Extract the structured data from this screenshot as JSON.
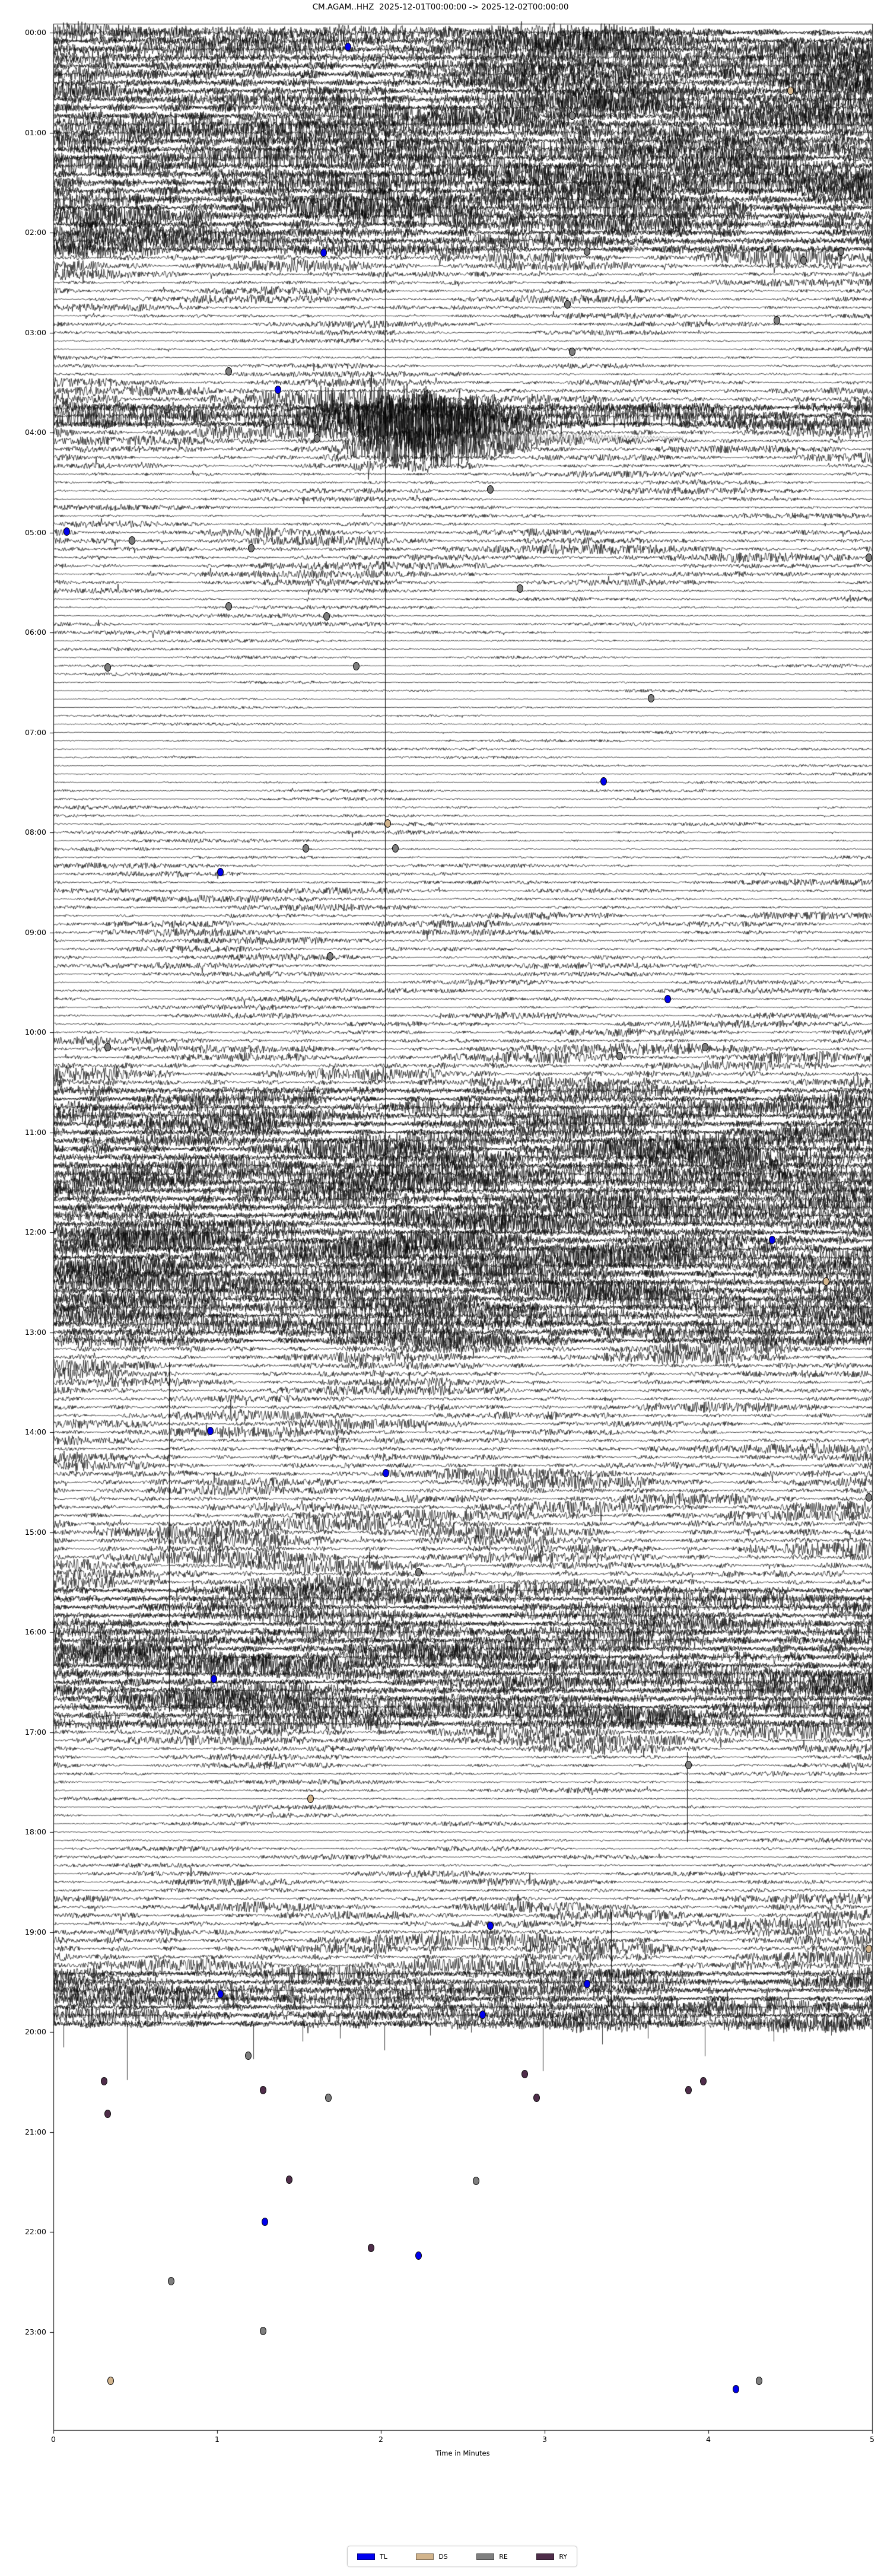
{
  "title": "CM.AGAM..HHZ  2025-12-01T00:00:00 -> 2025-12-02T00:00:00",
  "chart_data": {
    "type": "line",
    "subtype": "helicorder-day-plot",
    "station": "CM.AGAM..HHZ",
    "time_range": {
      "start": "2025-12-01T00:00:00",
      "end": "2025-12-02T00:00:00"
    },
    "xlabel": "Time in Minutes",
    "x_range": [
      0,
      5
    ],
    "x_ticks": [
      "0",
      "1",
      "2",
      "3",
      "4",
      "5"
    ],
    "y_tick_labels": [
      "00:00",
      "01:00",
      "02:00",
      "03:00",
      "04:00",
      "05:00",
      "06:00",
      "07:00",
      "08:00",
      "09:00",
      "10:00",
      "11:00",
      "12:00",
      "13:00",
      "14:00",
      "15:00",
      "16:00",
      "17:00",
      "18:00",
      "19:00",
      "20:00",
      "21:00",
      "22:00",
      "23:00"
    ],
    "minutes_per_line": 5,
    "lines_per_hour": 12,
    "waveform_end_label": "20:00",
    "grid": false,
    "legend_position": "bottom-center",
    "legend": [
      {
        "label": "TL",
        "color": "#0000ee"
      },
      {
        "label": "DS",
        "color": "#d2b48c"
      },
      {
        "label": "RE",
        "color": "#7f7f7f"
      },
      {
        "label": "RY",
        "color": "#4f2d4a"
      }
    ],
    "trace_color": "#000000",
    "row_amplitudes": [
      18,
      20,
      22,
      22,
      21,
      22,
      20,
      21,
      22,
      23,
      22,
      21,
      22,
      23,
      22,
      22,
      21,
      22,
      22,
      21,
      20,
      21,
      22,
      22,
      20,
      18,
      16,
      14,
      12,
      10,
      9,
      8,
      8,
      7,
      7,
      6,
      5,
      4,
      4,
      4,
      5,
      6,
      8,
      10,
      14,
      18,
      20,
      16,
      14,
      12,
      10,
      9,
      8,
      7,
      6,
      6,
      5,
      5,
      5,
      6,
      8,
      9,
      10,
      9,
      8,
      7,
      6,
      5,
      5,
      4,
      4,
      4,
      4,
      3,
      3,
      3,
      3,
      3,
      2.5,
      2.5,
      2.5,
      2.5,
      2.5,
      2.5,
      2.5,
      2.5,
      2.5,
      2.5,
      2.5,
      3,
      3,
      3,
      3,
      3.5,
      3.5,
      3.5,
      4,
      4,
      4,
      5,
      5,
      5,
      6,
      6,
      6,
      6,
      7,
      7,
      7,
      7,
      6,
      6,
      6,
      5,
      5,
      5,
      5,
      6,
      6,
      7,
      8,
      9,
      10,
      11,
      12,
      13,
      14,
      15,
      16,
      16,
      17,
      17,
      18,
      18,
      19,
      19,
      20,
      20,
      20,
      19,
      19,
      19,
      18,
      18,
      19,
      20,
      20,
      21,
      21,
      20,
      20,
      19,
      19,
      18,
      18,
      17,
      16,
      15,
      14,
      12,
      11,
      10,
      9,
      9,
      9,
      10,
      10,
      10,
      10,
      10,
      10,
      11,
      11,
      11,
      12,
      12,
      12,
      12,
      13,
      13,
      13,
      13,
      13,
      14,
      14,
      14,
      14,
      15,
      15,
      15,
      15,
      16,
      16,
      17,
      17,
      18,
      18,
      18,
      18,
      17,
      17,
      16,
      16,
      16,
      14,
      12,
      10,
      8,
      7,
      6,
      5,
      5,
      4,
      4,
      4,
      4,
      4,
      4,
      5,
      5,
      6,
      6,
      7,
      8,
      9,
      10,
      11,
      12,
      12,
      13,
      13,
      14,
      14,
      15,
      15,
      15,
      16,
      16,
      16,
      16
    ],
    "quake_events": [
      {
        "row_start": 44,
        "row_end": 52,
        "center_minute": 2.2,
        "sigma_minute": 0.35,
        "gain": 2.5
      }
    ],
    "coda": {
      "hour": 4.05,
      "start_minute": 2.42,
      "end_minute": 3.85,
      "color": "#666666"
    },
    "artifact_vlines": [
      {
        "minute": 2.025,
        "hour_start": 0.6,
        "hour_end": 13.0
      },
      {
        "minute": 0.707,
        "hour_start": 13.3,
        "hour_end": 16.8
      },
      {
        "minute": 3.87,
        "hour_start": 17.2,
        "hour_end": 18.1
      },
      {
        "minute": 3.406,
        "hour_start": 18.8,
        "hour_end": 19.95
      }
    ],
    "bottom_spikes": [
      {
        "minute": 0.06,
        "depth": 40
      },
      {
        "minute": 0.45,
        "depth": 95
      },
      {
        "minute": 1.22,
        "depth": 60
      },
      {
        "minute": 1.52,
        "depth": 30
      },
      {
        "minute": 1.75,
        "depth": 25
      },
      {
        "minute": 2.02,
        "depth": 45
      },
      {
        "minute": 2.3,
        "depth": 20
      },
      {
        "minute": 2.55,
        "depth": 15
      },
      {
        "minute": 2.99,
        "depth": 80
      },
      {
        "minute": 3.35,
        "depth": 35
      },
      {
        "minute": 3.63,
        "depth": 25
      },
      {
        "minute": 3.98,
        "depth": 55
      },
      {
        "minute": 4.4,
        "depth": 30
      },
      {
        "minute": 4.75,
        "depth": 20
      }
    ],
    "markers": [
      {
        "t": 0.14,
        "m": 1.8,
        "k": "TL"
      },
      {
        "t": 0.58,
        "m": 4.5,
        "k": "DS"
      },
      {
        "t": 0.83,
        "m": 3.17,
        "k": "RE"
      },
      {
        "t": 1.17,
        "m": 4.25,
        "k": "RE"
      },
      {
        "t": 2.2,
        "m": 1.65,
        "k": "TL"
      },
      {
        "t": 2.19,
        "m": 3.26,
        "k": "RE"
      },
      {
        "t": 2.19,
        "m": 4.81,
        "k": "RE"
      },
      {
        "t": 2.28,
        "m": 4.58,
        "k": "RE"
      },
      {
        "t": 2.72,
        "m": 3.14,
        "k": "RE"
      },
      {
        "t": 2.88,
        "m": 4.42,
        "k": "RE"
      },
      {
        "t": 3.19,
        "m": 3.17,
        "k": "RE"
      },
      {
        "t": 3.39,
        "m": 1.07,
        "k": "RE"
      },
      {
        "t": 3.57,
        "m": 1.37,
        "k": "TL"
      },
      {
        "t": 4.06,
        "m": 1.61,
        "k": "RE"
      },
      {
        "t": 4.57,
        "m": 2.67,
        "k": "RE"
      },
      {
        "t": 4.99,
        "m": 0.08,
        "k": "TL"
      },
      {
        "t": 5.08,
        "m": 0.48,
        "k": "RE"
      },
      {
        "t": 5.16,
        "m": 1.21,
        "k": "RE"
      },
      {
        "t": 5.25,
        "m": 4.99,
        "k": "RE"
      },
      {
        "t": 5.56,
        "m": 2.85,
        "k": "RE"
      },
      {
        "t": 5.74,
        "m": 1.07,
        "k": "RE"
      },
      {
        "t": 5.84,
        "m": 1.67,
        "k": "RE"
      },
      {
        "t": 6.35,
        "m": 0.33,
        "k": "RE"
      },
      {
        "t": 6.34,
        "m": 1.85,
        "k": "RE"
      },
      {
        "t": 6.66,
        "m": 3.65,
        "k": "RE"
      },
      {
        "t": 7.49,
        "m": 3.36,
        "k": "TL"
      },
      {
        "t": 7.91,
        "m": 2.04,
        "k": "DS"
      },
      {
        "t": 8.16,
        "m": 1.54,
        "k": "RE"
      },
      {
        "t": 8.16,
        "m": 2.09,
        "k": "RE"
      },
      {
        "t": 8.4,
        "m": 1.02,
        "k": "TL"
      },
      {
        "t": 9.24,
        "m": 1.69,
        "k": "RE"
      },
      {
        "t": 9.67,
        "m": 3.75,
        "k": "TL"
      },
      {
        "t": 10.15,
        "m": 0.33,
        "k": "RE"
      },
      {
        "t": 10.15,
        "m": 3.98,
        "k": "RE"
      },
      {
        "t": 10.24,
        "m": 3.46,
        "k": "RE"
      },
      {
        "t": 12.08,
        "m": 4.39,
        "k": "TL"
      },
      {
        "t": 12.49,
        "m": 4.72,
        "k": "DS"
      },
      {
        "t": 12.82,
        "m": 2.82,
        "k": "RE"
      },
      {
        "t": 13.99,
        "m": 0.96,
        "k": "TL"
      },
      {
        "t": 14.41,
        "m": 2.03,
        "k": "TL"
      },
      {
        "t": 14.65,
        "m": 4.99,
        "k": "RE"
      },
      {
        "t": 15.4,
        "m": 2.23,
        "k": "RE"
      },
      {
        "t": 16.06,
        "m": 2.78,
        "k": "RE"
      },
      {
        "t": 16.24,
        "m": 3.02,
        "k": "RE"
      },
      {
        "t": 16.47,
        "m": 0.98,
        "k": "TL"
      },
      {
        "t": 17.33,
        "m": 3.88,
        "k": "RE"
      },
      {
        "t": 17.67,
        "m": 1.57,
        "k": "DS"
      },
      {
        "t": 18.94,
        "m": 2.67,
        "k": "TL"
      },
      {
        "t": 19.17,
        "m": 4.99,
        "k": "DS"
      },
      {
        "t": 19.52,
        "m": 3.26,
        "k": "TL"
      },
      {
        "t": 19.62,
        "m": 1.02,
        "k": "TL"
      },
      {
        "t": 19.83,
        "m": 2.62,
        "k": "TL"
      },
      {
        "t": 20.24,
        "m": 1.19,
        "k": "RE"
      },
      {
        "t": 20.42,
        "m": 2.88,
        "k": "RY"
      },
      {
        "t": 20.49,
        "m": 0.31,
        "k": "RY"
      },
      {
        "t": 20.58,
        "m": 1.28,
        "k": "RY"
      },
      {
        "t": 20.49,
        "m": 3.97,
        "k": "RY"
      },
      {
        "t": 20.58,
        "m": 3.88,
        "k": "RY"
      },
      {
        "t": 20.66,
        "m": 1.68,
        "k": "RE"
      },
      {
        "t": 20.66,
        "m": 2.95,
        "k": "RY"
      },
      {
        "t": 20.82,
        "m": 0.33,
        "k": "RY"
      },
      {
        "t": 21.48,
        "m": 1.44,
        "k": "RY"
      },
      {
        "t": 21.49,
        "m": 2.58,
        "k": "RE"
      },
      {
        "t": 21.9,
        "m": 1.29,
        "k": "TL"
      },
      {
        "t": 22.16,
        "m": 1.94,
        "k": "RY"
      },
      {
        "t": 22.24,
        "m": 2.23,
        "k": "TL"
      },
      {
        "t": 22.49,
        "m": 0.72,
        "k": "RE"
      },
      {
        "t": 22.99,
        "m": 1.28,
        "k": "RE"
      },
      {
        "t": 23.49,
        "m": 0.35,
        "k": "DS"
      },
      {
        "t": 23.57,
        "m": 4.17,
        "k": "TL"
      },
      {
        "t": 23.49,
        "m": 4.31,
        "k": "RE"
      }
    ]
  }
}
